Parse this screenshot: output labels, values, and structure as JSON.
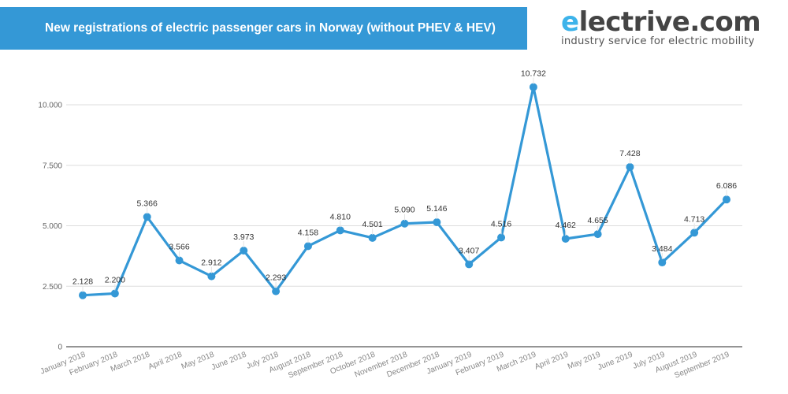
{
  "header": {
    "title": "New registrations of electric passenger cars in Norway (without PHEV & HEV)",
    "banner_color": "#3498d6"
  },
  "logo": {
    "brand_first_letter": "e",
    "brand_rest": "lectrive.com",
    "tagline": "industry service for electric mobility",
    "accent_color": "#3db3ea"
  },
  "chart_data": {
    "type": "line",
    "title": "New registrations of electric passenger cars in Norway (without PHEV & HEV)",
    "xlabel": "",
    "ylabel": "",
    "ylim": [
      0,
      10000
    ],
    "yticks": [
      0,
      2500,
      5000,
      7500,
      10000
    ],
    "ytick_labels": [
      "0",
      "2.500",
      "5.000",
      "7.500",
      "10.000"
    ],
    "grid": true,
    "legend": "none",
    "line_color": "#3498d6",
    "categories": [
      "January 2018",
      "February 2018",
      "March 2018",
      "April 2018",
      "May 2018",
      "June 2018",
      "July 2018",
      "August 2018",
      "September 2018",
      "October 2018",
      "November 2018",
      "December 2018",
      "January 2019",
      "February 2019",
      "March 2019",
      "April 2019",
      "May 2019",
      "June 2019",
      "July 2019",
      "August 2019",
      "September 2019"
    ],
    "series": [
      {
        "name": "New registrations",
        "values": [
          2128,
          2200,
          5366,
          3566,
          2912,
          3973,
          2293,
          4158,
          4810,
          4501,
          5090,
          5146,
          3407,
          4516,
          10732,
          4462,
          4655,
          7428,
          3484,
          4713,
          6086
        ],
        "data_labels": [
          "2.128",
          "2.200",
          "5.366",
          "3.566",
          "2.912",
          "3.973",
          "2.293",
          "4.158",
          "4.810",
          "4.501",
          "5.090",
          "5.146",
          "3.407",
          "4.516",
          "10.732",
          "4.462",
          "4.655",
          "7.428",
          "3.484",
          "4.713",
          "6.086"
        ]
      }
    ]
  }
}
